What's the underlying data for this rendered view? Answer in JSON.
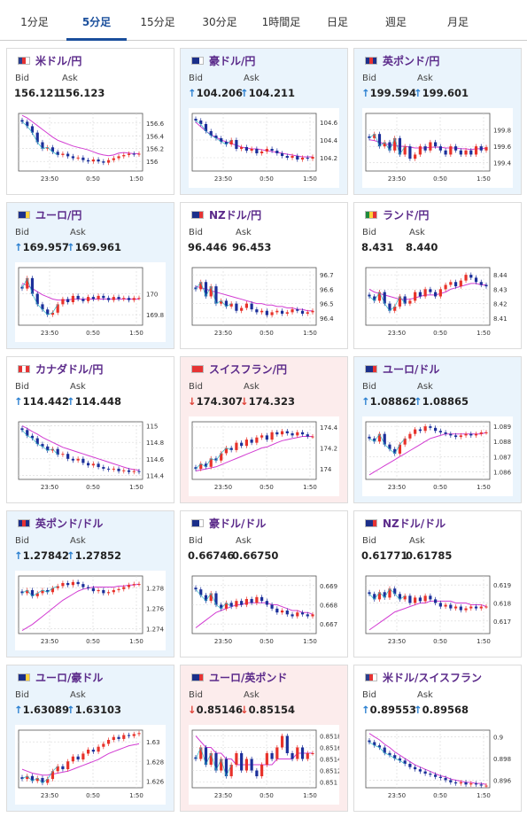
{
  "tabs": [
    "1分足",
    "5分足",
    "15分足",
    "30分足",
    "1時間足",
    "日足",
    "週足",
    "月足"
  ],
  "active_tab": 1,
  "x_ticks": [
    "23:50",
    "0:50",
    "1:50"
  ],
  "cards": [
    {
      "pair": "米ドル/円",
      "bid": "156.121",
      "ask": "156.123",
      "dir": "none",
      "bg": "neutral",
      "flag": [
        "#2b3f8e",
        "#e63333",
        "#ffffff"
      ],
      "ylim": [
        155.85,
        156.75
      ],
      "yticks": [
        "156.6",
        "156.4",
        "156.2",
        "156"
      ],
      "ytickv": [
        156.6,
        156.4,
        156.2,
        156.0
      ],
      "close": [
        156.62,
        156.55,
        156.45,
        156.3,
        156.2,
        156.22,
        156.15,
        156.1,
        156.12,
        156.08,
        156.05,
        156.06,
        156.02,
        156.0,
        156.03,
        156.0,
        155.98,
        156.02,
        156.05,
        156.08,
        156.1,
        156.12,
        156.11,
        156.12
      ],
      "ma": [
        156.72,
        156.68,
        156.62,
        156.56,
        156.5,
        156.44,
        156.38,
        156.33,
        156.3,
        156.27,
        156.24,
        156.22,
        156.2,
        156.18,
        156.15,
        156.12,
        156.1,
        156.09,
        156.1,
        156.13,
        156.14,
        156.13,
        156.12,
        156.12
      ]
    },
    {
      "pair": "豪ドル/円",
      "bid": "104.206",
      "ask": "104.211",
      "dir": "up",
      "bg": "up",
      "flag": [
        "#1b2f8a",
        "#1b2f8a",
        "#ffffff"
      ],
      "ylim": [
        104.05,
        104.7
      ],
      "yticks": [
        "104.6",
        "104.4",
        "104.2"
      ],
      "ytickv": [
        104.6,
        104.4,
        104.2
      ],
      "close": [
        104.62,
        104.58,
        104.5,
        104.45,
        104.42,
        104.38,
        104.35,
        104.4,
        104.3,
        104.32,
        104.28,
        104.3,
        104.25,
        104.27,
        104.3,
        104.28,
        104.25,
        104.22,
        104.2,
        104.22,
        104.18,
        104.2,
        104.19,
        104.21
      ],
      "ma": [
        104.6,
        104.55,
        104.5,
        104.46,
        104.43,
        104.4,
        104.38,
        104.36,
        104.34,
        104.32,
        104.31,
        104.3,
        104.3,
        104.29,
        104.28,
        104.27,
        104.26,
        104.25,
        104.24,
        104.23,
        104.22,
        104.21,
        104.21,
        104.21
      ]
    },
    {
      "pair": "英ポンド/円",
      "bid": "199.594",
      "ask": "199.601",
      "dir": "up",
      "bg": "up",
      "flag": [
        "#1b2f8a",
        "#e63333",
        "#1b2f8a"
      ],
      "ylim": [
        199.3,
        200.0
      ],
      "yticks": [
        "199.8",
        "199.6",
        "199.4"
      ],
      "ytickv": [
        199.8,
        199.6,
        199.4
      ],
      "close": [
        199.7,
        199.75,
        199.6,
        199.65,
        199.55,
        199.7,
        199.5,
        199.6,
        199.45,
        199.5,
        199.6,
        199.55,
        199.65,
        199.6,
        199.55,
        199.5,
        199.6,
        199.55,
        199.5,
        199.55,
        199.5,
        199.6,
        199.55,
        199.59
      ],
      "ma": [
        199.68,
        199.67,
        199.65,
        199.63,
        199.62,
        199.61,
        199.6,
        199.6,
        199.59,
        199.58,
        199.58,
        199.58,
        199.59,
        199.59,
        199.59,
        199.58,
        199.58,
        199.58,
        199.57,
        199.57,
        199.56,
        199.57,
        199.57,
        199.58
      ]
    },
    {
      "pair": "ユーロ/円",
      "bid": "169.957",
      "ask": "169.961",
      "dir": "up",
      "bg": "up",
      "flag": [
        "#1b2f8a",
        "#1b2f8a",
        "#ffd23a"
      ],
      "ylim": [
        169.7,
        170.25
      ],
      "yticks": [
        "170",
        "169.8"
      ],
      "ytickv": [
        170.0,
        169.8
      ],
      "close": [
        170.05,
        170.15,
        170.0,
        169.9,
        169.85,
        169.8,
        169.82,
        169.9,
        169.95,
        169.92,
        169.98,
        169.95,
        169.93,
        169.97,
        169.95,
        169.98,
        169.96,
        169.94,
        169.97,
        169.95,
        169.96,
        169.94,
        169.96,
        169.96
      ],
      "ma": [
        170.1,
        170.08,
        170.05,
        170.02,
        169.99,
        169.97,
        169.95,
        169.94,
        169.94,
        169.94,
        169.95,
        169.95,
        169.95,
        169.95,
        169.95,
        169.95,
        169.95,
        169.95,
        169.95,
        169.95,
        169.95,
        169.95,
        169.95,
        169.95
      ]
    },
    {
      "pair": "NZドル/円",
      "bid": "96.446",
      "ask": "96.453",
      "dir": "none",
      "bg": "neutral",
      "flag": [
        "#1b2f8a",
        "#1b2f8a",
        "#e63333"
      ],
      "ylim": [
        96.35,
        96.75
      ],
      "yticks": [
        "96.7",
        "96.6",
        "96.5",
        "96.4"
      ],
      "ytickv": [
        96.7,
        96.6,
        96.5,
        96.4
      ],
      "close": [
        96.6,
        96.65,
        96.55,
        96.62,
        96.5,
        96.52,
        96.48,
        96.5,
        96.45,
        96.47,
        96.5,
        96.46,
        96.44,
        96.45,
        96.42,
        96.44,
        96.45,
        96.43,
        96.44,
        96.46,
        96.45,
        96.43,
        96.44,
        96.45
      ],
      "ma": [
        96.62,
        96.61,
        96.6,
        96.59,
        96.58,
        96.57,
        96.56,
        96.55,
        96.54,
        96.53,
        96.52,
        96.51,
        96.5,
        96.5,
        96.49,
        96.49,
        96.48,
        96.48,
        96.47,
        96.47,
        96.46,
        96.46,
        96.45,
        96.45
      ]
    },
    {
      "pair": "ランド/円",
      "bid": "8.431",
      "ask": "8.440",
      "dir": "none",
      "bg": "neutral",
      "flag": [
        "#1e8a3c",
        "#ffd23a",
        "#e63333"
      ],
      "ylim": [
        8.405,
        8.445
      ],
      "yticks": [
        "8.44",
        "8.43",
        "8.42",
        "8.41"
      ],
      "ytickv": [
        8.44,
        8.43,
        8.42,
        8.41
      ],
      "close": [
        8.425,
        8.422,
        8.428,
        8.42,
        8.415,
        8.418,
        8.425,
        8.42,
        8.422,
        8.428,
        8.425,
        8.43,
        8.428,
        8.425,
        8.43,
        8.433,
        8.435,
        8.432,
        8.436,
        8.44,
        8.438,
        8.435,
        8.433,
        8.432
      ],
      "ma": [
        8.43,
        8.428,
        8.427,
        8.426,
        8.425,
        8.424,
        8.423,
        8.423,
        8.423,
        8.424,
        8.425,
        8.426,
        8.426,
        8.426,
        8.427,
        8.428,
        8.43,
        8.431,
        8.432,
        8.433,
        8.434,
        8.434,
        8.433,
        8.433
      ]
    },
    {
      "pair": "カナダドル/円",
      "bid": "114.442",
      "ask": "114.448",
      "dir": "up",
      "bg": "neutral",
      "flag": [
        "#e63333",
        "#ffffff",
        "#e63333"
      ],
      "ylim": [
        114.35,
        115.05
      ],
      "yticks": [
        "115",
        "114.8",
        "114.6",
        "114.4"
      ],
      "ytickv": [
        115.0,
        114.8,
        114.6,
        114.4
      ],
      "close": [
        114.95,
        114.88,
        114.85,
        114.78,
        114.75,
        114.7,
        114.72,
        114.65,
        114.66,
        114.6,
        114.58,
        114.6,
        114.55,
        114.52,
        114.54,
        114.5,
        114.48,
        114.47,
        114.48,
        114.45,
        114.46,
        114.44,
        114.45,
        114.44
      ],
      "ma": [
        115.0,
        114.97,
        114.93,
        114.9,
        114.86,
        114.83,
        114.8,
        114.77,
        114.74,
        114.72,
        114.7,
        114.68,
        114.66,
        114.64,
        114.62,
        114.6,
        114.58,
        114.56,
        114.54,
        114.52,
        114.5,
        114.48,
        114.47,
        114.46
      ]
    },
    {
      "pair": "スイスフラン/円",
      "bid": "174.307",
      "ask": "174.323",
      "dir": "down",
      "bg": "down",
      "flag": [
        "#e63333",
        "#e63333",
        "#e63333"
      ],
      "ylim": [
        173.9,
        174.45
      ],
      "yticks": [
        "174.4",
        "174.2",
        "174"
      ],
      "ytickv": [
        174.4,
        174.2,
        174.0
      ],
      "close": [
        174.0,
        174.05,
        174.02,
        174.1,
        174.08,
        174.15,
        174.2,
        174.18,
        174.25,
        174.22,
        174.28,
        174.25,
        174.3,
        174.32,
        174.28,
        174.35,
        174.33,
        174.36,
        174.34,
        174.32,
        174.35,
        174.33,
        174.31,
        174.31
      ],
      "ma": [
        173.98,
        173.99,
        174.0,
        174.01,
        174.02,
        174.04,
        174.06,
        174.08,
        174.1,
        174.12,
        174.14,
        174.16,
        174.18,
        174.2,
        174.21,
        174.23,
        174.25,
        174.27,
        174.28,
        174.29,
        174.3,
        174.31,
        174.31,
        174.31
      ]
    },
    {
      "pair": "ユーロ/ドル",
      "bid": "1.08862",
      "ask": "1.08865",
      "dir": "up",
      "bg": "up",
      "flag": [
        "#1b2f8a",
        "#1b2f8a",
        "#e63333"
      ],
      "ylim": [
        1.0855,
        1.0893
      ],
      "yticks": [
        "1.089",
        "1.088",
        "1.087",
        "1.086"
      ],
      "ytickv": [
        1.089,
        1.088,
        1.087,
        1.086
      ],
      "close": [
        1.0882,
        1.088,
        1.0885,
        1.0878,
        1.0875,
        1.0872,
        1.0878,
        1.0882,
        1.0885,
        1.0888,
        1.0887,
        1.089,
        1.0889,
        1.0887,
        1.0886,
        1.0885,
        1.0884,
        1.0883,
        1.0884,
        1.0885,
        1.0884,
        1.0885,
        1.0886,
        1.0886
      ],
      "ma": [
        1.0858,
        1.086,
        1.0862,
        1.0864,
        1.0866,
        1.0868,
        1.087,
        1.0872,
        1.0874,
        1.0876,
        1.0878,
        1.088,
        1.0882,
        1.0883,
        1.0884,
        1.0885,
        1.0885,
        1.0885,
        1.0885,
        1.0885,
        1.0885,
        1.0885,
        1.0885,
        1.0886
      ]
    },
    {
      "pair": "英ポンド/ドル",
      "bid": "1.27842",
      "ask": "1.27852",
      "dir": "up",
      "bg": "up",
      "flag": [
        "#1b2f8a",
        "#e63333",
        "#1b2f8a"
      ],
      "ylim": [
        1.2735,
        1.2792
      ],
      "yticks": [
        "1.278",
        "1.276",
        "1.274"
      ],
      "ytickv": [
        1.278,
        1.276,
        1.274
      ],
      "close": [
        1.2775,
        1.2778,
        1.2772,
        1.2775,
        1.2778,
        1.2776,
        1.278,
        1.2782,
        1.2785,
        1.2783,
        1.2786,
        1.2784,
        1.2781,
        1.278,
        1.2777,
        1.2778,
        1.2775,
        1.2776,
        1.2778,
        1.2779,
        1.2781,
        1.2783,
        1.2784,
        1.2784
      ],
      "ma": [
        1.2738,
        1.2741,
        1.2744,
        1.2748,
        1.2752,
        1.2756,
        1.276,
        1.2764,
        1.2768,
        1.2771,
        1.2774,
        1.2777,
        1.2779,
        1.278,
        1.2781,
        1.2781,
        1.2781,
        1.2781,
        1.2781,
        1.2782,
        1.2782,
        1.2783,
        1.2783,
        1.2784
      ]
    },
    {
      "pair": "豪ドル/ドル",
      "bid": "0.66746",
      "ask": "0.66750",
      "dir": "none",
      "bg": "neutral",
      "flag": [
        "#1b2f8a",
        "#1b2f8a",
        "#ffffff"
      ],
      "ylim": [
        0.6665,
        0.6695
      ],
      "yticks": [
        "0.669",
        "0.668",
        "0.667"
      ],
      "ytickv": [
        0.669,
        0.668,
        0.667
      ],
      "close": [
        0.6688,
        0.6685,
        0.6682,
        0.6686,
        0.668,
        0.6678,
        0.6681,
        0.6679,
        0.6682,
        0.668,
        0.6683,
        0.6681,
        0.6684,
        0.6682,
        0.668,
        0.6678,
        0.6676,
        0.6677,
        0.6675,
        0.6674,
        0.6676,
        0.6675,
        0.6674,
        0.6675
      ],
      "ma": [
        0.6668,
        0.667,
        0.6672,
        0.6674,
        0.6676,
        0.6677,
        0.6678,
        0.6679,
        0.668,
        0.668,
        0.6681,
        0.6681,
        0.6681,
        0.6681,
        0.6681,
        0.668,
        0.668,
        0.6679,
        0.6678,
        0.6677,
        0.6677,
        0.6676,
        0.6676,
        0.6675
      ]
    },
    {
      "pair": "NZドル/ドル",
      "bid": "0.61771",
      "ask": "0.61785",
      "dir": "none",
      "bg": "neutral",
      "flag": [
        "#1b2f8a",
        "#1b2f8a",
        "#e63333"
      ],
      "ylim": [
        0.6163,
        0.6195
      ],
      "yticks": [
        "0.619",
        "0.618",
        "0.617"
      ],
      "ytickv": [
        0.619,
        0.618,
        0.617
      ],
      "close": [
        0.6185,
        0.6182,
        0.6186,
        0.6183,
        0.6188,
        0.6185,
        0.6182,
        0.6184,
        0.618,
        0.6183,
        0.6181,
        0.6184,
        0.6182,
        0.618,
        0.6178,
        0.6179,
        0.6177,
        0.6178,
        0.6176,
        0.6177,
        0.6178,
        0.6177,
        0.6178,
        0.6178
      ],
      "ma": [
        0.6165,
        0.6167,
        0.6169,
        0.6171,
        0.6173,
        0.6175,
        0.6176,
        0.6177,
        0.6178,
        0.6179,
        0.618,
        0.618,
        0.6181,
        0.6181,
        0.6181,
        0.6181,
        0.6181,
        0.618,
        0.618,
        0.618,
        0.6179,
        0.6179,
        0.6179,
        0.6178
      ]
    },
    {
      "pair": "ユーロ/豪ドル",
      "bid": "1.63089",
      "ask": "1.63103",
      "dir": "up",
      "bg": "up",
      "flag": [
        "#1b2f8a",
        "#1b2f8a",
        "#ffd23a"
      ],
      "ylim": [
        1.6253,
        1.6312
      ],
      "yticks": [
        "1.63",
        "1.628",
        "1.626"
      ],
      "ytickv": [
        1.63,
        1.628,
        1.626
      ],
      "close": [
        1.6262,
        1.6265,
        1.626,
        1.6263,
        1.6258,
        1.6262,
        1.627,
        1.6275,
        1.6272,
        1.628,
        1.6285,
        1.6282,
        1.6288,
        1.6292,
        1.629,
        1.6295,
        1.6298,
        1.6302,
        1.6305,
        1.6303,
        1.6307,
        1.6306,
        1.6308,
        1.6309
      ],
      "ma": [
        1.6272,
        1.627,
        1.6268,
        1.6267,
        1.6266,
        1.6266,
        1.6267,
        1.6268,
        1.6269,
        1.627,
        1.6272,
        1.6274,
        1.6276,
        1.6278,
        1.628,
        1.6282,
        1.6285,
        1.6288,
        1.629,
        1.6292,
        1.6294,
        1.6296,
        1.6297,
        1.6298
      ]
    },
    {
      "pair": "ユーロ/英ポンド",
      "bid": "0.85146",
      "ask": "0.85154",
      "dir": "down",
      "bg": "down",
      "flag": [
        "#1b2f8a",
        "#1b2f8a",
        "#e63333"
      ],
      "ylim": [
        0.8509,
        0.8519
      ],
      "yticks": [
        "0.8518",
        "0.8516",
        "0.8514",
        "0.8512",
        "0.851"
      ],
      "ytickv": [
        0.8518,
        0.8516,
        0.8514,
        0.8512,
        0.851
      ],
      "close": [
        0.8514,
        0.8516,
        0.8513,
        0.8515,
        0.8512,
        0.8514,
        0.8511,
        0.8513,
        0.8515,
        0.8512,
        0.8514,
        0.8512,
        0.8511,
        0.8513,
        0.8515,
        0.8514,
        0.8516,
        0.8518,
        0.8515,
        0.8514,
        0.8516,
        0.8514,
        0.8515,
        0.8515
      ],
      "ma": [
        0.8518,
        0.8517,
        0.8516,
        0.8516,
        0.8515,
        0.8515,
        0.8514,
        0.8514,
        0.8513,
        0.8513,
        0.8513,
        0.8513,
        0.8513,
        0.8513,
        0.8513,
        0.8513,
        0.8514,
        0.8514,
        0.8514,
        0.8514,
        0.8515,
        0.8515,
        0.8515,
        0.8515
      ]
    },
    {
      "pair": "米ドル/スイスフラン",
      "bid": "0.89553",
      "ask": "0.89568",
      "dir": "up",
      "bg": "neutral",
      "flag": [
        "#2b3f8e",
        "#e63333",
        "#ffffff"
      ],
      "ylim": [
        0.8953,
        0.9006
      ],
      "yticks": [
        "0.9",
        "0.898",
        "0.896"
      ],
      "ytickv": [
        0.9,
        0.898,
        0.896
      ],
      "close": [
        0.8995,
        0.8992,
        0.899,
        0.8985,
        0.8983,
        0.898,
        0.8978,
        0.8975,
        0.8972,
        0.897,
        0.8968,
        0.8966,
        0.8965,
        0.8963,
        0.8962,
        0.896,
        0.8958,
        0.8957,
        0.8958,
        0.8956,
        0.8957,
        0.8956,
        0.8955,
        0.8955
      ],
      "ma": [
        0.9003,
        0.9,
        0.8997,
        0.8993,
        0.899,
        0.8986,
        0.8983,
        0.898,
        0.8977,
        0.8974,
        0.8972,
        0.897,
        0.8968,
        0.8966,
        0.8964,
        0.8963,
        0.8961,
        0.896,
        0.8959,
        0.8958,
        0.8958,
        0.8957,
        0.8957,
        0.8956
      ]
    }
  ],
  "labels": {
    "bid": "Bid",
    "ask": "Ask"
  },
  "chart_data": {
    "type": "line",
    "x": [
      "23:50",
      "0:50",
      "1:50"
    ],
    "note": ""
  }
}
